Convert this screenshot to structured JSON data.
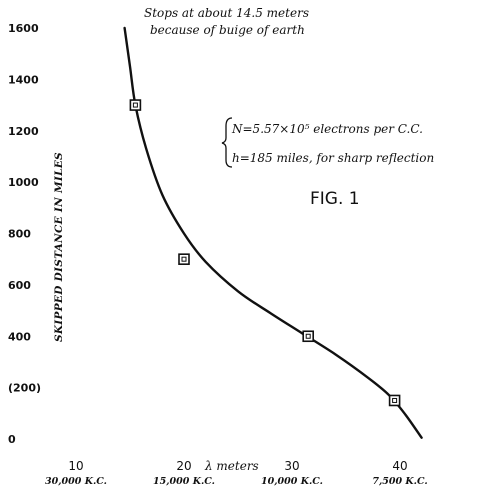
{
  "chart_data": {
    "type": "line",
    "title": "",
    "figure_label": "FIG. 1",
    "xlabel": "λ meters",
    "ylabel": "SKIPPED DISTANCE IN MILES",
    "xlim": [
      7,
      42
    ],
    "ylim": [
      0,
      1600
    ],
    "x_ticks": [
      10,
      20,
      30,
      40
    ],
    "x_frequency_labels": [
      "30,000 K.C.",
      "15,000 K.C.",
      "10,000 K.C.",
      "7,500 K.C."
    ],
    "y_ticks": [
      0,
      200,
      400,
      600,
      800,
      1000,
      1200,
      1400,
      1600
    ],
    "y_tick_labels": [
      "0",
      "(200)",
      "400",
      "600",
      "800",
      "1000",
      "1200",
      "1400",
      "1600"
    ],
    "grid": false,
    "series": [
      {
        "curve": {
          "x": [
            14.5,
            15.0,
            15.5,
            16.5,
            18.0,
            20.0,
            22.0,
            25.0,
            28.0,
            31.0,
            34.0,
            37.0,
            39.0,
            40.5,
            42.0
          ],
          "y": [
            1600,
            1450,
            1300,
            1130,
            950,
            800,
            690,
            575,
            490,
            410,
            330,
            240,
            170,
            95,
            5
          ]
        },
        "marked_points": {
          "x": [
            15.5,
            20.0,
            31.5,
            39.5
          ],
          "y": [
            1300,
            700,
            400,
            150
          ]
        }
      }
    ],
    "annotations": {
      "top_note_line1": "Stops at about 14.5 meters",
      "top_note_line2": "because of buige of earth",
      "param_line1": "N=5.57×10⁵ electrons per C.C.",
      "param_line2": "h=185 miles, for sharp reflection"
    }
  }
}
